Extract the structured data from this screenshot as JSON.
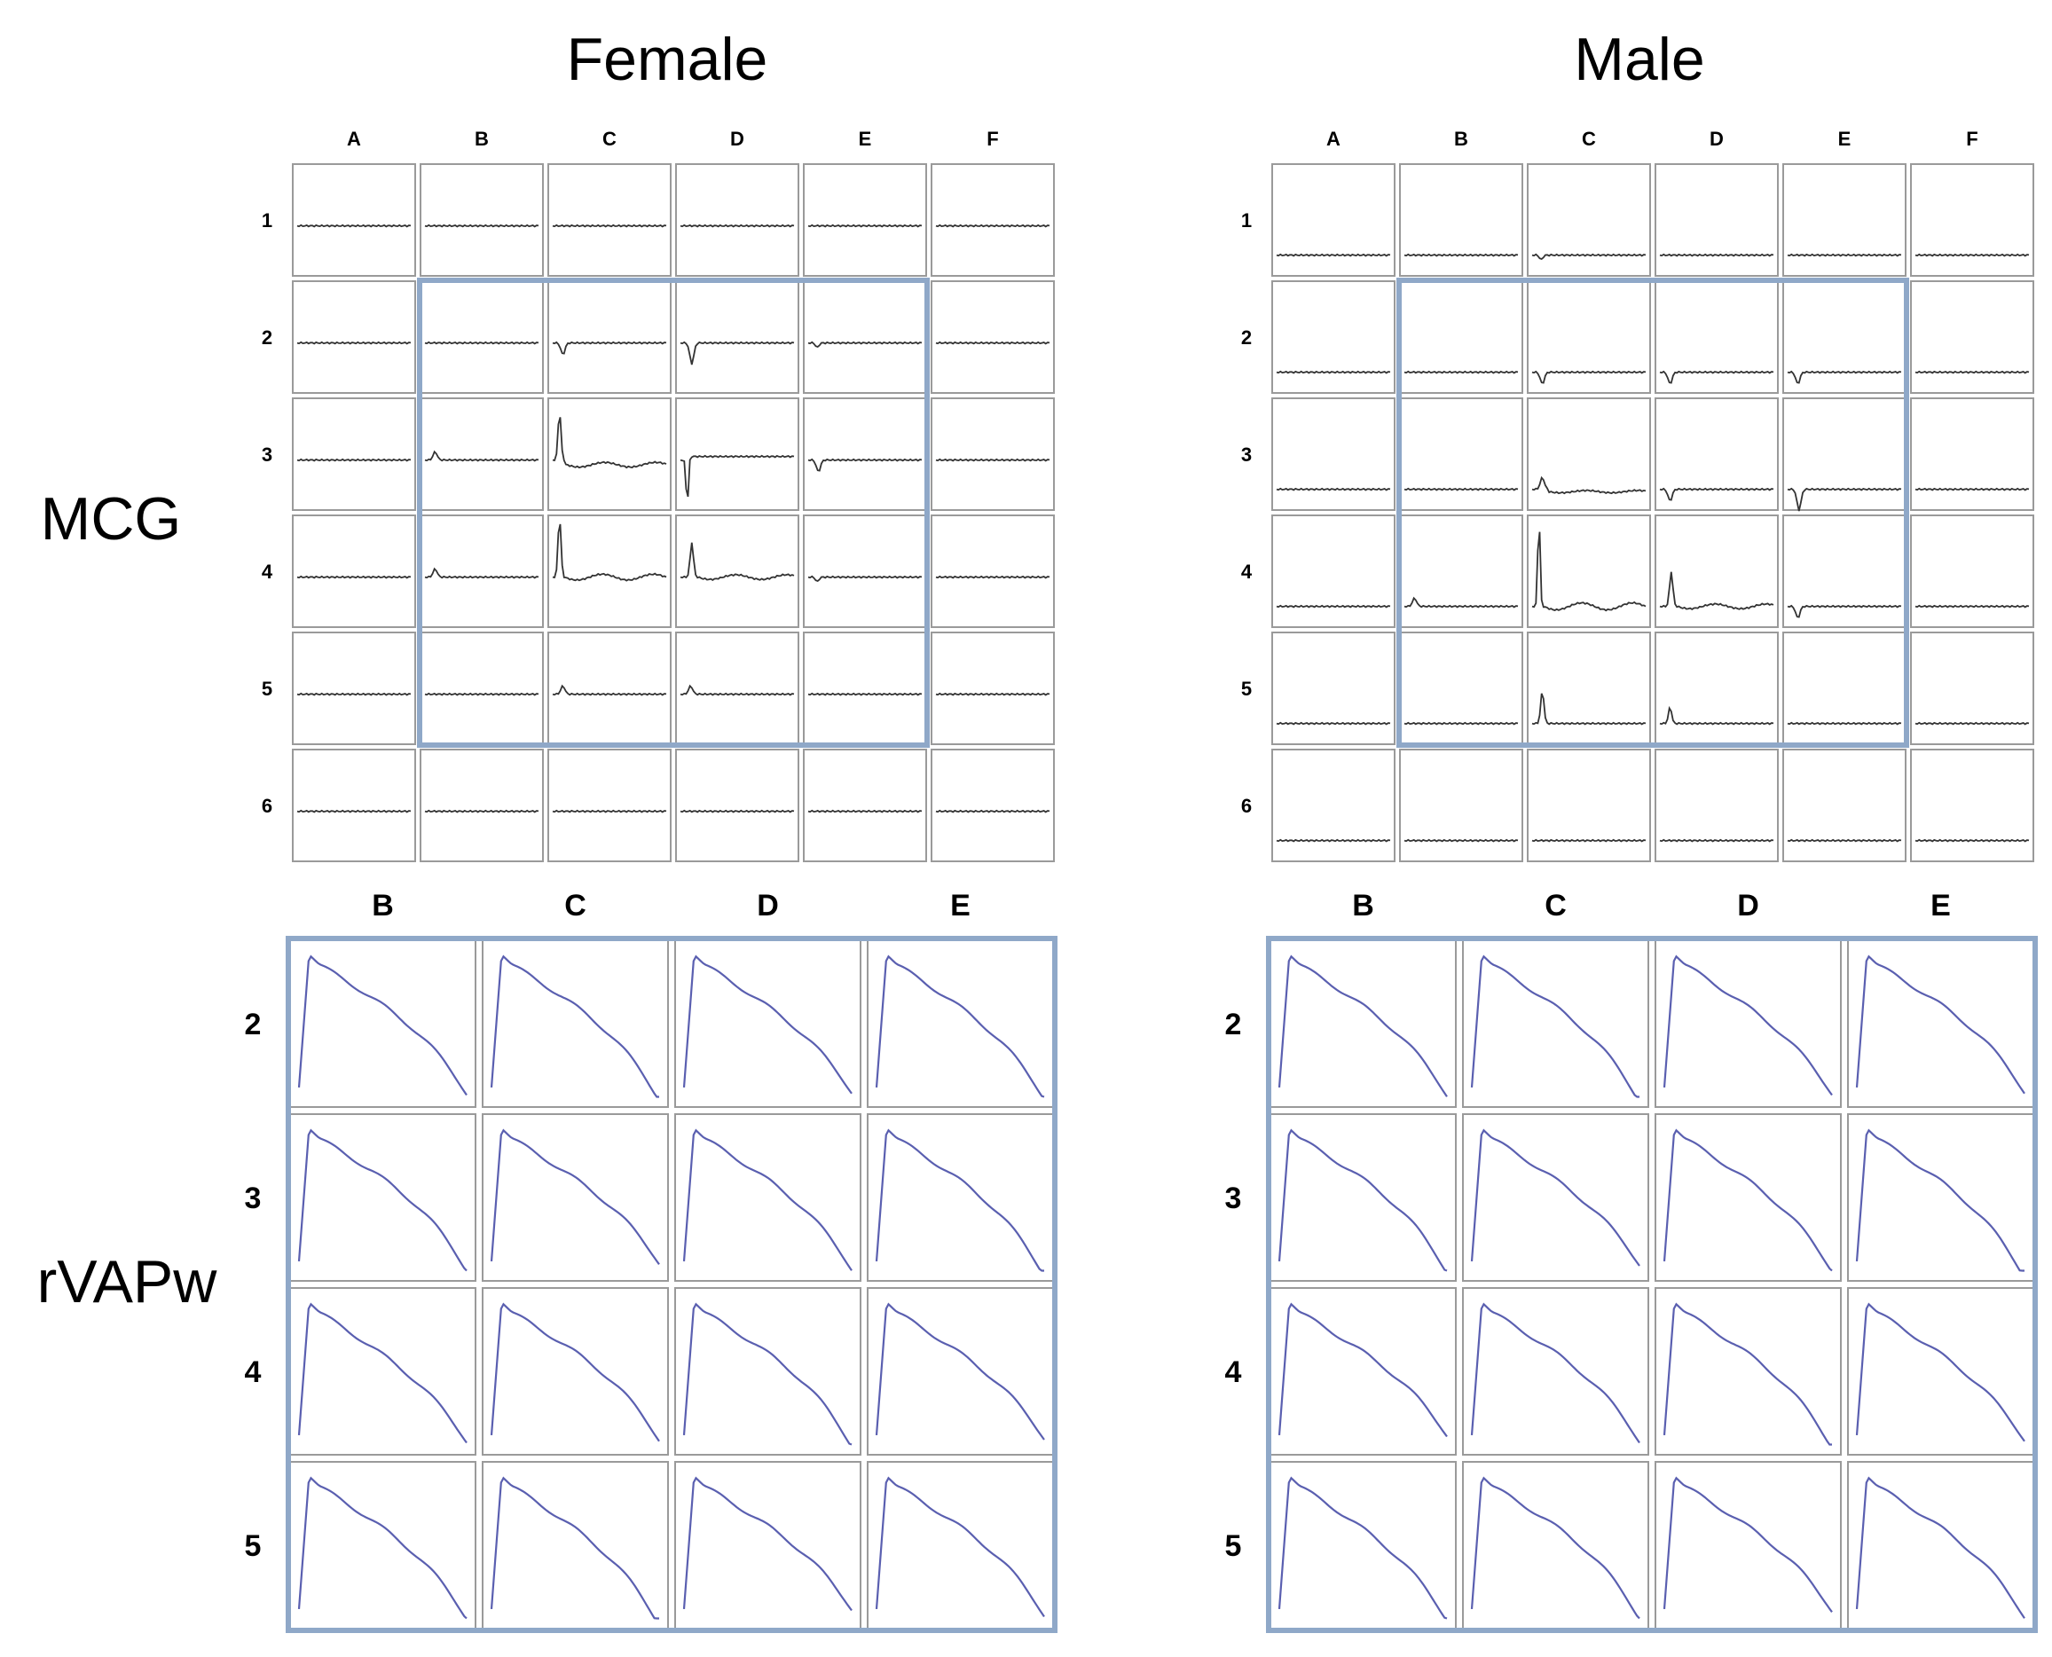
{
  "titles": {
    "female": "Female",
    "male": "Male"
  },
  "row_labels": {
    "mcg": "MCG",
    "rvapw": "rVAPw"
  },
  "mcg": {
    "columns": [
      "A",
      "B",
      "C",
      "D",
      "E",
      "F"
    ],
    "rows": [
      "1",
      "2",
      "3",
      "4",
      "5",
      "6"
    ],
    "highlight": {
      "columns": [
        "B",
        "C",
        "D",
        "E"
      ],
      "rows": [
        "2",
        "3",
        "4",
        "5"
      ]
    }
  },
  "rvapw": {
    "columns": [
      "B",
      "C",
      "D",
      "E"
    ],
    "rows": [
      "2",
      "3",
      "4",
      "5"
    ]
  },
  "colors": {
    "highlight": "#8fa8c8",
    "trace": "#5a5fb0",
    "cell_border": "#9a9a9a",
    "mcg_trace": "#333333"
  },
  "traces": {
    "female_mcg": [
      [
        "flat",
        "flat",
        "flat",
        "flat",
        "flat",
        "flat"
      ],
      [
        "flat",
        "flat",
        "neg_small",
        "neg_med",
        "neg_tiny",
        "flat"
      ],
      [
        "flat",
        "pos_tiny",
        "pos_big_drop",
        "neg_big",
        "neg_small",
        "flat"
      ],
      [
        "flat",
        "pos_tiny",
        "pos_big_wave",
        "pos_med_wave",
        "neg_tiny",
        "flat"
      ],
      [
        "flat",
        "flat",
        "pos_tiny",
        "pos_tiny",
        "flat",
        "flat"
      ],
      [
        "flat",
        "flat",
        "flat",
        "flat",
        "flat",
        "flat"
      ]
    ],
    "male_mcg": [
      [
        "flat",
        "flat",
        "neg_tiny",
        "flat",
        "flat",
        "flat"
      ],
      [
        "flat",
        "flat",
        "neg_small",
        "neg_small",
        "neg_small",
        "flat"
      ],
      [
        "flat",
        "flat",
        "pos_small_drop",
        "neg_small",
        "neg_med",
        "flat"
      ],
      [
        "flat",
        "pos_tiny",
        "pos_huge_wave",
        "pos_med_wave",
        "neg_small",
        "flat"
      ],
      [
        "flat",
        "flat",
        "pos_med",
        "pos_small",
        "flat",
        "flat"
      ],
      [
        "flat",
        "flat",
        "flat",
        "flat",
        "flat",
        "flat"
      ]
    ]
  }
}
